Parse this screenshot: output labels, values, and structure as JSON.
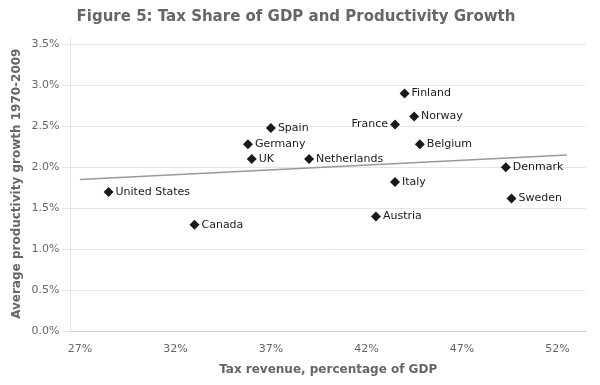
{
  "chart_data": {
    "type": "scatter",
    "title": "Figure 5: Tax Share of GDP and Productivity Growth",
    "xlabel": "Tax revenue, percentage of GDP",
    "ylabel": "Average productivity growth 1970-2009",
    "series": [
      {
        "type": "line",
        "color": "#999999",
        "x": [
          0.27,
          0.525
        ],
        "values": [
          0.0185,
          0.0215
        ]
      },
      {
        "type": "scatter",
        "color": "#1a1a1a",
        "marker": "diamond",
        "x": [
          0.285,
          0.33,
          0.358,
          0.36,
          0.37,
          0.39,
          0.435,
          0.44,
          0.445,
          0.448,
          0.435,
          0.425,
          0.493,
          0.496
        ],
        "values": [
          0.017,
          0.013,
          0.0228,
          0.021,
          0.0248,
          0.021,
          0.0252,
          0.029,
          0.0262,
          0.0228,
          0.0182,
          0.014,
          0.02,
          0.0162
        ],
        "labels": [
          "United States",
          "Canada",
          "Germany",
          "UK",
          "Spain",
          "Netherlands",
          "France",
          "Finland",
          "Norway",
          "Belgium",
          "Italy",
          "Austria",
          "Denmark",
          "Sweden"
        ]
      }
    ],
    "xlim": [
      0.265,
      0.535
    ],
    "ylim": [
      0.0,
      0.036
    ],
    "xticks": [
      {
        "value": 0.27,
        "label": "27%"
      },
      {
        "value": 0.32,
        "label": "32%"
      },
      {
        "value": 0.37,
        "label": "37%"
      },
      {
        "value": 0.42,
        "label": "42%"
      },
      {
        "value": 0.47,
        "label": "47%"
      },
      {
        "value": 0.52,
        "label": "52%"
      }
    ],
    "yticks": [
      {
        "value": 0.0,
        "label": "0.0%"
      },
      {
        "value": 0.005,
        "label": "0.5%"
      },
      {
        "value": 0.01,
        "label": "1.0%"
      },
      {
        "value": 0.015,
        "label": "1.5%"
      },
      {
        "value": 0.02,
        "label": "2.0%"
      },
      {
        "value": 0.025,
        "label": "2.5%"
      },
      {
        "value": 0.03,
        "label": "3.0%"
      },
      {
        "value": 0.035,
        "label": "3.5%"
      }
    ],
    "grid": "y"
  }
}
